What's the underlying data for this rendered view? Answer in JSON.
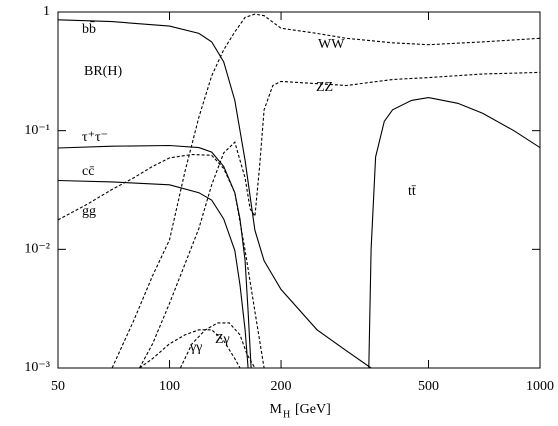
{
  "chart_data": {
    "type": "line",
    "xlabel": "M",
    "xlabel_sub": "H",
    "xlabel_unit": "[GeV]",
    "annotation": "BR(H)",
    "xlog": true,
    "ylog": true,
    "xlim": [
      50,
      1000
    ],
    "ylim": [
      0.001,
      1
    ],
    "xticks": [
      50,
      100,
      200,
      500,
      1000
    ],
    "yticks": [
      {
        "value": 0.001,
        "label": "10⁻³"
      },
      {
        "value": 0.01,
        "label": "10⁻²"
      },
      {
        "value": 0.1,
        "label": "10⁻¹"
      },
      1
    ],
    "series": [
      {
        "name": "bb̄",
        "color": "#000000",
        "dash": false,
        "x": [
          50,
          70,
          100,
          120,
          130,
          140,
          150,
          155,
          160,
          165,
          170,
          180,
          200,
          250,
          300,
          350
        ],
        "values": [
          0.86,
          0.83,
          0.76,
          0.66,
          0.56,
          0.38,
          0.18,
          0.1,
          0.056,
          0.028,
          0.0145,
          0.008,
          0.0046,
          0.0021,
          0.0014,
          0.001
        ]
      },
      {
        "name": "τ⁺τ⁻",
        "color": "#000000",
        "dash": false,
        "x": [
          50,
          70,
          100,
          120,
          130,
          140,
          150,
          155,
          160,
          163,
          166
        ],
        "values": [
          0.0715,
          0.074,
          0.075,
          0.072,
          0.066,
          0.05,
          0.03,
          0.018,
          0.008,
          0.003,
          0.001
        ]
      },
      {
        "name": "cc̄",
        "color": "#000000",
        "dash": false,
        "x": [
          50,
          70,
          100,
          120,
          130,
          140,
          150,
          155,
          160,
          163
        ],
        "values": [
          0.038,
          0.037,
          0.035,
          0.03,
          0.026,
          0.018,
          0.0098,
          0.005,
          0.0021,
          0.001
        ]
      },
      {
        "name": "gg",
        "color": "#000000",
        "dash": true,
        "x": [
          50,
          60,
          70,
          80,
          90,
          100,
          115,
          130,
          140,
          150,
          160,
          170,
          180
        ],
        "values": [
          0.0177,
          0.024,
          0.032,
          0.04,
          0.05,
          0.059,
          0.063,
          0.062,
          0.048,
          0.03,
          0.0098,
          0.003,
          0.001
        ]
      },
      {
        "name": "γγ",
        "color": "#000000",
        "dash": true,
        "x": [
          83,
          90,
          100,
          110,
          120,
          130,
          140,
          150,
          155
        ],
        "values": [
          0.001,
          0.0012,
          0.0016,
          0.0019,
          0.0021,
          0.0021,
          0.0017,
          0.0012,
          0.001
        ]
      },
      {
        "name": "Zγ",
        "color": "#000000",
        "dash": true,
        "x": [
          107,
          115,
          125,
          135,
          145,
          155,
          162,
          170
        ],
        "values": [
          0.001,
          0.0016,
          0.0021,
          0.0024,
          0.0024,
          0.0019,
          0.0013,
          0.001
        ]
      },
      {
        "name": "WW",
        "color": "#000000",
        "dash": true,
        "x": [
          70,
          80,
          90,
          100,
          110,
          120,
          130,
          140,
          150,
          160,
          170,
          180,
          200,
          250,
          300,
          400,
          500,
          700,
          1000
        ],
        "values": [
          0.001,
          0.0025,
          0.006,
          0.012,
          0.045,
          0.13,
          0.29,
          0.48,
          0.68,
          0.9,
          0.96,
          0.93,
          0.73,
          0.66,
          0.6,
          0.55,
          0.53,
          0.56,
          0.6
        ]
      },
      {
        "name": "ZZ",
        "color": "#000000",
        "dash": true,
        "x": [
          83,
          90,
          100,
          110,
          120,
          130,
          140,
          150,
          160,
          165,
          170,
          175,
          180,
          190,
          200,
          300,
          400,
          500,
          700,
          1000
        ],
        "values": [
          0.001,
          0.0016,
          0.0035,
          0.0075,
          0.015,
          0.035,
          0.065,
          0.08,
          0.04,
          0.022,
          0.019,
          0.05,
          0.15,
          0.24,
          0.26,
          0.24,
          0.27,
          0.28,
          0.3,
          0.31
        ]
      },
      {
        "name": "tt̄",
        "color": "#000000",
        "dash": false,
        "x": [
          345,
          350,
          360,
          380,
          400,
          450,
          500,
          600,
          700,
          850,
          1000
        ],
        "values": [
          0.001,
          0.01,
          0.06,
          0.12,
          0.15,
          0.18,
          0.19,
          0.17,
          0.14,
          0.1,
          0.072
        ]
      }
    ]
  }
}
